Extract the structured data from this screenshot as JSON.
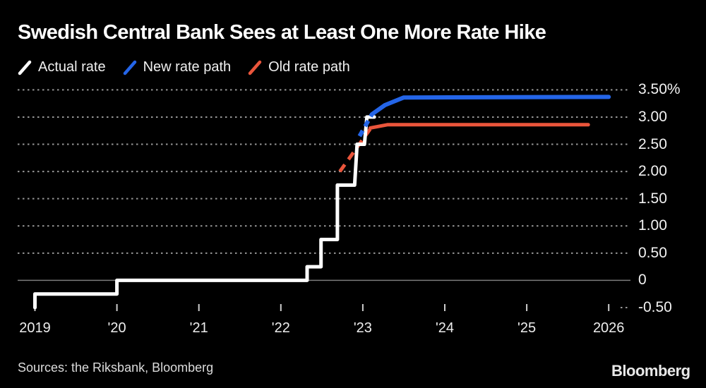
{
  "title": "Swedish Central Bank Sees at Least One More Rate Hike",
  "legend": [
    {
      "label": "Actual rate",
      "color": "#ffffff"
    },
    {
      "label": "New rate path",
      "color": "#2465e8"
    },
    {
      "label": "Old rate path",
      "color": "#ea553b"
    }
  ],
  "source": "Sources: the Riksbank, Bloomberg",
  "brand": "Bloomberg",
  "colors": {
    "background": "#000000",
    "actual_rate": "#ffffff",
    "new_rate_path": "#2465e8",
    "old_rate_path": "#ea553b",
    "gridline": "#979797",
    "zero_line": "#7c7c7c"
  },
  "chart_data": {
    "type": "line",
    "title": "Swedish Central Bank Sees at Least One More Rate Hike",
    "xlabel": "",
    "ylabel": "%",
    "ylim": [
      -0.5,
      3.5
    ],
    "xlim": [
      2019,
      2026.3
    ],
    "grid": "horizontal-dotted",
    "legend_position": "top-left",
    "y_ticks": [
      {
        "value": 3.5,
        "label": "3.50%",
        "grid": "dotted"
      },
      {
        "value": 3.0,
        "label": "3.00",
        "grid": "dotted"
      },
      {
        "value": 2.5,
        "label": "2.50",
        "grid": "dotted"
      },
      {
        "value": 2.0,
        "label": "2.00",
        "grid": "dotted"
      },
      {
        "value": 1.5,
        "label": "1.50",
        "grid": "dotted"
      },
      {
        "value": 1.0,
        "label": "1.00",
        "grid": "dotted"
      },
      {
        "value": 0.5,
        "label": "0.50",
        "grid": "dotted"
      },
      {
        "value": 0.0,
        "label": "0",
        "grid": "solid"
      },
      {
        "value": -0.5,
        "label": "-0.50",
        "grid": "tick"
      }
    ],
    "x_ticks": [
      {
        "year": 2019,
        "label": "2019"
      },
      {
        "year": 2020,
        "label": "'20"
      },
      {
        "year": 2021,
        "label": "'21"
      },
      {
        "year": 2022,
        "label": "'22"
      },
      {
        "year": 2023,
        "label": "'23"
      },
      {
        "year": 2024,
        "label": "'24"
      },
      {
        "year": 2025,
        "label": "'25"
      },
      {
        "year": 2026,
        "label": "2026"
      }
    ],
    "series": [
      {
        "id": "old-rate-path-dashed",
        "name": "Old rate path (forecast start, dashed)",
        "color": "#ea553b",
        "style": "dashed",
        "width": 5,
        "dash": "12 9",
        "points": [
          [
            2022.72,
            2.0
          ],
          [
            2023.09,
            2.78
          ]
        ]
      },
      {
        "id": "old-rate-path",
        "name": "Old rate path",
        "color": "#ea553b",
        "style": "solid",
        "width": 5,
        "points": [
          [
            2023.09,
            2.8
          ],
          [
            2023.3,
            2.86
          ],
          [
            2025.75,
            2.86
          ]
        ]
      },
      {
        "id": "actual-rate",
        "name": "Actual rate",
        "color": "#ffffff",
        "style": "solid",
        "width": 5,
        "points": [
          [
            2019.0,
            -0.5
          ],
          [
            2019.0,
            -0.25
          ],
          [
            2020.0,
            -0.25
          ],
          [
            2020.0,
            0.0
          ],
          [
            2022.32,
            0.0
          ],
          [
            2022.32,
            0.25
          ],
          [
            2022.49,
            0.25
          ],
          [
            2022.49,
            0.75
          ],
          [
            2022.69,
            0.75
          ],
          [
            2022.69,
            1.75
          ],
          [
            2022.9,
            1.75
          ],
          [
            2022.93,
            2.5
          ],
          [
            2023.02,
            2.5
          ],
          [
            2023.05,
            3.0
          ],
          [
            2023.14,
            3.0
          ]
        ]
      },
      {
        "id": "new-rate-path-dashed",
        "name": "New rate path (forecast start, dashed)",
        "color": "#2465e8",
        "style": "dashed",
        "width": 6,
        "dash": "9 7",
        "points": [
          [
            2022.96,
            2.65
          ],
          [
            2023.11,
            3.05
          ]
        ]
      },
      {
        "id": "new-rate-path",
        "name": "New rate path",
        "color": "#2465e8",
        "style": "solid",
        "width": 6,
        "points": [
          [
            2023.11,
            3.05
          ],
          [
            2023.27,
            3.22
          ],
          [
            2023.5,
            3.36
          ],
          [
            2026.0,
            3.37
          ]
        ]
      }
    ]
  }
}
